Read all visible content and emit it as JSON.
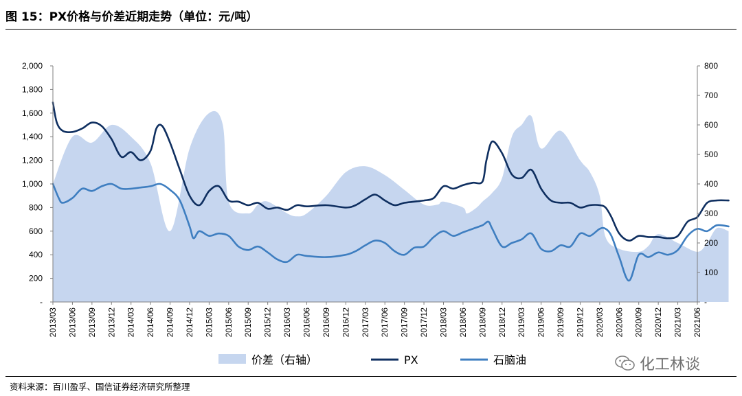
{
  "header": {
    "title": "图 15：PX价格与价差近期走势（单位：元/吨）"
  },
  "footer": {
    "source": "资料来源：百川盈孚、国信证券经济研究所整理",
    "watermark": "化工林谈"
  },
  "colors": {
    "spread": "#c6d6ef",
    "px": "#0f2f60",
    "naphtha": "#3e7ec0"
  },
  "chart_data": {
    "type": "line",
    "title": "",
    "xlabel": "",
    "ylabel": "",
    "ylim": [
      0,
      2000
    ],
    "ylim_right": [
      0,
      800
    ],
    "y_ticks": [
      "-",
      "200",
      "400",
      "600",
      "800",
      "1,000",
      "1,200",
      "1,400",
      "1,600",
      "1,800",
      "2,000"
    ],
    "y_ticks_right": [
      "-",
      "100",
      "200",
      "300",
      "400",
      "500",
      "600",
      "700",
      "800"
    ],
    "categories": [
      "2013/03",
      "2013/06",
      "2013/09",
      "2013/12",
      "2014/03",
      "2014/06",
      "2014/09",
      "2014/12",
      "2015/03",
      "2015/06",
      "2015/09",
      "2015/12",
      "2016/03",
      "2016/06",
      "2016/09",
      "2016/12",
      "2017/03",
      "2017/06",
      "2017/09",
      "2017/12",
      "2018/03",
      "2018/06",
      "2018/09",
      "2018/12",
      "2019/03",
      "2019/06",
      "2019/09",
      "2019/12",
      "2020/03",
      "2020/06",
      "2020/09",
      "2020/12",
      "2021/03",
      "2021/06"
    ],
    "legend_position": "bottom",
    "series": [
      {
        "name": "价差（右轴）",
        "type": "area",
        "axis": "right",
        "x": [
          0,
          1,
          2,
          3,
          4,
          5,
          6,
          7,
          8,
          8.7,
          9,
          10,
          10.5,
          11,
          12,
          12.5,
          13,
          14,
          15,
          16,
          17,
          18,
          19,
          19.7,
          20,
          21,
          21.2,
          21.7,
          22,
          22.5,
          23,
          23.5,
          24,
          24.5,
          25,
          26,
          27,
          27.5,
          28,
          28.3,
          29,
          30,
          30.5,
          31,
          32,
          33,
          33.5,
          34,
          34.6
        ],
        "values": [
          400,
          560,
          540,
          600,
          560,
          470,
          240,
          520,
          640,
          600,
          340,
          300,
          330,
          340,
          300,
          290,
          300,
          360,
          440,
          460,
          430,
          380,
          330,
          330,
          340,
          320,
          300,
          320,
          340,
          370,
          420,
          560,
          600,
          630,
          520,
          580,
          480,
          440,
          360,
          220,
          180,
          170,
          190,
          230,
          200,
          170,
          200,
          250,
          240
        ]
      },
      {
        "name": "PX",
        "type": "line",
        "axis": "left",
        "x": [
          0,
          0.2,
          0.5,
          1,
          1.5,
          2,
          2.5,
          3,
          3.5,
          4,
          4.5,
          5,
          5.3,
          5.6,
          6,
          6.5,
          7,
          7.5,
          8,
          8.5,
          9,
          9.5,
          10,
          10.5,
          11,
          11.5,
          12,
          12.5,
          13,
          14,
          15,
          15.5,
          16,
          16.5,
          17,
          17.5,
          18,
          18.5,
          19,
          19.5,
          20,
          20.5,
          21,
          21.5,
          22,
          22.2,
          22.5,
          23,
          23.5,
          24,
          24.5,
          25,
          25.5,
          26,
          26.5,
          27,
          27.5,
          28,
          28.3,
          28.6,
          29,
          29.5,
          30,
          30.5,
          31,
          31.5,
          32,
          32.5,
          33,
          33.5,
          34,
          34.6
        ],
        "values": [
          1690,
          1520,
          1450,
          1440,
          1470,
          1520,
          1490,
          1380,
          1230,
          1270,
          1200,
          1280,
          1470,
          1490,
          1350,
          1120,
          900,
          820,
          940,
          980,
          860,
          850,
          820,
          840,
          790,
          800,
          780,
          820,
          810,
          820,
          800,
          820,
          870,
          910,
          860,
          820,
          840,
          850,
          860,
          880,
          980,
          960,
          990,
          1010,
          1020,
          1200,
          1360,
          1260,
          1080,
          1050,
          1120,
          960,
          860,
          840,
          840,
          800,
          820,
          820,
          800,
          720,
          580,
          520,
          560,
          550,
          550,
          540,
          560,
          680,
          720,
          840,
          860,
          860
        ]
      },
      {
        "name": "石脑油",
        "type": "line",
        "axis": "left",
        "x": [
          0,
          0.3,
          0.5,
          1,
          1.5,
          2,
          2.5,
          3,
          3.5,
          4,
          4.5,
          5,
          5.5,
          6,
          6.5,
          7,
          7.2,
          7.5,
          8,
          8.5,
          9,
          9.5,
          10,
          10.5,
          11,
          11.5,
          12,
          12.5,
          13,
          14,
          15,
          15.5,
          16,
          16.5,
          17,
          17.5,
          18,
          18.5,
          19,
          19.5,
          20,
          20.5,
          21,
          21.5,
          22,
          22.3,
          22.5,
          23,
          23.5,
          24,
          24.5,
          25,
          25.5,
          26,
          26.5,
          27,
          27.5,
          28,
          28.3,
          28.6,
          29,
          29.5,
          30,
          30.5,
          31,
          31.5,
          32,
          32.5,
          33,
          33.5,
          34,
          34.6
        ],
        "values": [
          1000,
          880,
          840,
          880,
          960,
          940,
          980,
          1000,
          960,
          960,
          970,
          980,
          1000,
          950,
          860,
          640,
          540,
          600,
          560,
          580,
          560,
          470,
          440,
          470,
          420,
          360,
          340,
          400,
          390,
          380,
          400,
          430,
          480,
          520,
          500,
          430,
          400,
          460,
          470,
          550,
          600,
          560,
          590,
          620,
          650,
          680,
          620,
          470,
          500,
          530,
          580,
          450,
          430,
          480,
          470,
          580,
          560,
          620,
          620,
          560,
          380,
          180,
          400,
          380,
          420,
          400,
          440,
          560,
          620,
          600,
          650,
          640
        ]
      }
    ]
  }
}
